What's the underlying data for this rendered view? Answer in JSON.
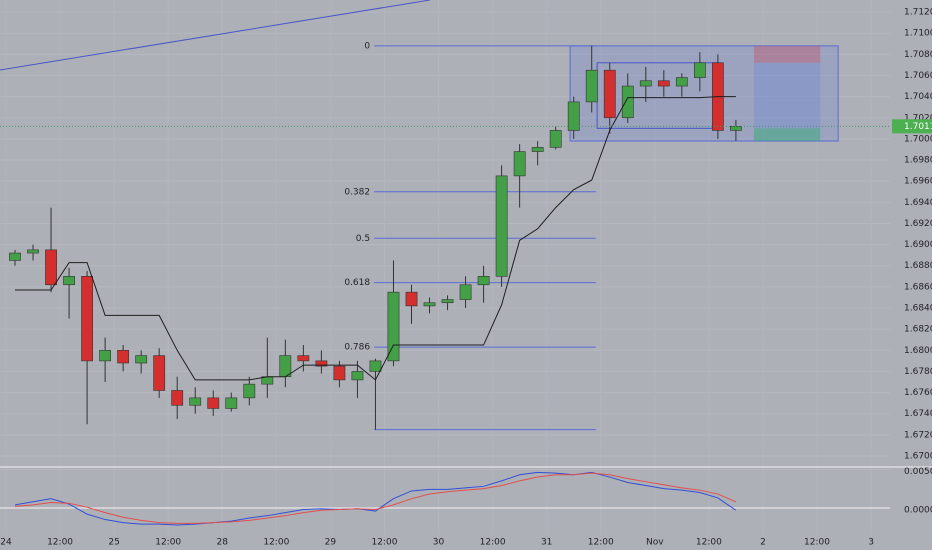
{
  "chart_data": {
    "type": "candlestick",
    "x": [
      2,
      6,
      10,
      14,
      18,
      22,
      26,
      30,
      34,
      38,
      42,
      46,
      50,
      54,
      58,
      62,
      66,
      70,
      74,
      78,
      82,
      86,
      90,
      94,
      98,
      102,
      106,
      110,
      114,
      118,
      122,
      126,
      130,
      134,
      138,
      142,
      146,
      150,
      154,
      158,
      162
    ],
    "open": [
      1.6885,
      1.6892,
      1.6895,
      1.6862,
      1.687,
      1.679,
      1.68,
      1.6788,
      1.6795,
      1.6762,
      1.6748,
      1.6755,
      1.6745,
      1.6755,
      1.6768,
      1.6775,
      1.6795,
      1.679,
      1.6785,
      1.6772,
      1.678,
      1.679,
      1.6855,
      1.6842,
      1.6845,
      1.6848,
      1.6862,
      1.687,
      1.6965,
      1.6988,
      1.6992,
      1.7008,
      1.7035,
      1.7065,
      1.702,
      1.705,
      1.7055,
      1.705,
      1.7058,
      1.7072,
      1.7008
    ],
    "high": [
      1.6895,
      1.69,
      1.6935,
      1.6878,
      1.6875,
      1.6812,
      1.6805,
      1.68,
      1.6802,
      1.6775,
      1.6765,
      1.6762,
      1.676,
      1.6775,
      1.6812,
      1.681,
      1.6805,
      1.68,
      1.679,
      1.679,
      1.6792,
      1.6885,
      1.6862,
      1.685,
      1.6852,
      1.687,
      1.688,
      1.6975,
      1.6995,
      1.6998,
      1.7012,
      1.704,
      1.7088,
      1.7072,
      1.7062,
      1.7068,
      1.7065,
      1.7062,
      1.7082,
      1.708,
      1.7018
    ],
    "low": [
      1.688,
      1.6885,
      1.6855,
      1.683,
      1.673,
      1.677,
      1.678,
      1.6778,
      1.6755,
      1.6735,
      1.674,
      1.6738,
      1.6742,
      1.6748,
      1.6755,
      1.6765,
      1.678,
      1.6778,
      1.6765,
      1.6755,
      1.6725,
      1.6785,
      1.6825,
      1.6835,
      1.6838,
      1.684,
      1.6845,
      1.686,
      1.6935,
      1.6975,
      1.699,
      1.7,
      1.7025,
      1.7005,
      1.7015,
      1.7035,
      1.704,
      1.704,
      1.7045,
      1.7,
      1.6998
    ],
    "close": [
      1.6892,
      1.6895,
      1.6862,
      1.687,
      1.679,
      1.68,
      1.6788,
      1.6795,
      1.6762,
      1.6748,
      1.6755,
      1.6745,
      1.6755,
      1.6768,
      1.6775,
      1.6795,
      1.679,
      1.6785,
      1.6772,
      1.678,
      1.679,
      1.6855,
      1.6842,
      1.6845,
      1.6848,
      1.6862,
      1.687,
      1.6965,
      1.6988,
      1.6992,
      1.7008,
      1.7035,
      1.7065,
      1.702,
      1.705,
      1.7055,
      1.705,
      1.7058,
      1.7072,
      1.7008,
      1.70119
    ],
    "up_color": "#43a047",
    "down_color": "#d32f2f",
    "wick_color": "#333333",
    "overlay": {
      "color": "#1e1e1e",
      "values": [
        1.6857,
        1.6857,
        1.6857,
        1.6883,
        1.6883,
        1.6833,
        1.6833,
        1.6833,
        1.6833,
        1.68,
        1.6772,
        1.6772,
        1.6772,
        1.6772,
        1.6775,
        1.6775,
        1.6786,
        1.6786,
        1.6786,
        1.6786,
        1.6772,
        1.6805,
        1.6805,
        1.6805,
        1.6805,
        1.6805,
        1.6805,
        1.6843,
        1.6904,
        1.6915,
        1.6935,
        1.6952,
        1.6961,
        1.7008,
        1.7039,
        1.7039,
        1.7039,
        1.7039,
        1.7039,
        1.704,
        1.704
      ]
    },
    "last_price": 1.70119,
    "last_price_color": "#4caf50",
    "xlim": [
      -1.33,
      196.2
    ],
    "xticks": [
      {
        "value": 0,
        "label": "24"
      },
      {
        "value": 12,
        "label": "12:00"
      },
      {
        "value": 24,
        "label": "25"
      },
      {
        "value": 36,
        "label": "12:00"
      },
      {
        "value": 48,
        "label": "28"
      },
      {
        "value": 60,
        "label": "12:00"
      },
      {
        "value": 72,
        "label": "29"
      },
      {
        "value": 84,
        "label": "12:00"
      },
      {
        "value": 96,
        "label": "30"
      },
      {
        "value": 108,
        "label": "12:00"
      },
      {
        "value": 120,
        "label": "31"
      },
      {
        "value": 132,
        "label": "12:00"
      },
      {
        "value": 144,
        "label": "Nov"
      },
      {
        "value": 156,
        "label": "12:00"
      },
      {
        "value": 168,
        "label": "2"
      },
      {
        "value": 180,
        "label": "12:00"
      },
      {
        "value": 192,
        "label": "3"
      }
    ],
    "ylim": [
      1.66915,
      1.71314
    ],
    "yticks": [
      {
        "value": 1.712,
        "label": "1.71200"
      },
      {
        "value": 1.71,
        "label": "1.71000"
      },
      {
        "value": 1.708,
        "label": "1.70800"
      },
      {
        "value": 1.706,
        "label": "1.70600"
      },
      {
        "value": 1.704,
        "label": "1.70400"
      },
      {
        "value": 1.702,
        "label": "1.70200"
      },
      {
        "value": 1.7,
        "label": "1.70000"
      },
      {
        "value": 1.698,
        "label": "1.69800"
      },
      {
        "value": 1.696,
        "label": "1.69600"
      },
      {
        "value": 1.694,
        "label": "1.69400"
      },
      {
        "value": 1.692,
        "label": "1.69200"
      },
      {
        "value": 1.69,
        "label": "1.69000"
      },
      {
        "value": 1.688,
        "label": "1.68800"
      },
      {
        "value": 1.686,
        "label": "1.68600"
      },
      {
        "value": 1.684,
        "label": "1.68400"
      },
      {
        "value": 1.682,
        "label": "1.68200"
      },
      {
        "value": 1.68,
        "label": "1.68000"
      },
      {
        "value": 1.678,
        "label": "1.67800"
      },
      {
        "value": 1.676,
        "label": "1.67600"
      },
      {
        "value": 1.674,
        "label": "1.67400"
      },
      {
        "value": 1.672,
        "label": "1.67200"
      },
      {
        "value": 1.67,
        "label": "1.67000"
      }
    ],
    "grid": true,
    "trend_line": {
      "color": "#4a55c8",
      "x": [
        -1.33,
        94.1
      ],
      "price": [
        1.70652,
        1.71314
      ]
    },
    "fib": {
      "color": "#5b6bd6",
      "x_range": [
        81.7,
        130.9
      ],
      "low": 1.6725,
      "levels": [
        {
          "level": 0,
          "price": 1.7088
        },
        {
          "level": 0.382,
          "price": 1.695
        },
        {
          "level": 0.5,
          "price": 1.6906
        },
        {
          "level": 0.618,
          "price": 1.6864
        },
        {
          "level": 0.786,
          "price": 1.6803
        }
      ]
    },
    "range_box": {
      "x": [
        125.2,
        184.7
      ],
      "price": [
        1.6998,
        1.7088
      ]
    },
    "inner_box": {
      "x": [
        131.2,
        158.5
      ],
      "price": [
        1.701,
        1.7072
      ]
    },
    "position": {
      "x": [
        166.0,
        180.7
      ],
      "top": 1.7088,
      "upper": 1.7072,
      "lower": 1.701,
      "bottom": 1.6998
    },
    "oscillator": {
      "ylim": [
        -0.0035,
        0.0053
      ],
      "yticks": [
        {
          "value": 0.005,
          "label": "0.00500"
        },
        {
          "value": 0,
          "label": "0.00000"
        }
      ],
      "series": [
        {
          "color": "#2f4fd6",
          "values": [
            0.0004,
            0.0008,
            0.0012,
            0.0005,
            -0.0008,
            -0.0015,
            -0.0019,
            -0.0021,
            -0.0021,
            -0.0022,
            -0.0021,
            -0.0019,
            -0.0017,
            -0.0013,
            -0.001,
            -0.0006,
            -0.0002,
            -0.0001,
            -0.0002,
            -0.0001,
            -0.0004,
            0.0012,
            0.0022,
            0.0024,
            0.0024,
            0.0026,
            0.0028,
            0.0035,
            0.0043,
            0.0046,
            0.0045,
            0.0043,
            0.0046,
            0.004,
            0.0033,
            0.0029,
            0.0025,
            0.0023,
            0.002,
            0.0013,
            -0.0003
          ]
        },
        {
          "color": "#e0504a",
          "values": [
            0.0002,
            0.0004,
            0.0007,
            0.0006,
            0.0001,
            -0.0006,
            -0.0012,
            -0.0016,
            -0.0019,
            -0.002,
            -0.002,
            -0.0019,
            -0.0018,
            -0.0016,
            -0.0013,
            -0.001,
            -0.0006,
            -0.0003,
            -0.0002,
            -0.0001,
            -0.0002,
            0.0004,
            0.0012,
            0.0018,
            0.0021,
            0.0023,
            0.0025,
            0.0029,
            0.0035,
            0.004,
            0.0043,
            0.0043,
            0.0045,
            0.0043,
            0.0038,
            0.0034,
            0.003,
            0.0026,
            0.0023,
            0.0018,
            0.0008
          ]
        }
      ]
    }
  }
}
